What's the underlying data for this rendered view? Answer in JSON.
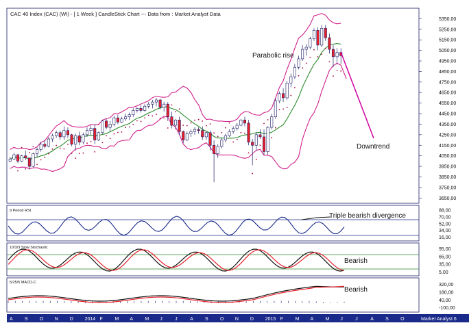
{
  "chart_data": {
    "type": "candlestick",
    "title": "CAC 40 Index (CAC) (WI) -  [ 1 Week ] CandleStick Chart --- Data from : Market Analyst Data",
    "watermark": "Market Analyst 6",
    "colors": {
      "up": "#ffffff",
      "down": "#e8202a",
      "wick": "#1a1a66",
      "bollinger": "#d0208a",
      "ma": "#2a8a2a",
      "psar": "#b00040",
      "projection": "#d000a0",
      "axis_band": "#1a2a8a"
    },
    "x_labels": [
      "A",
      "S",
      "O",
      "N",
      "D",
      "2014",
      "F",
      "M",
      "A",
      "M",
      "J",
      "J",
      "A",
      "S",
      "O",
      "N",
      "D",
      "2015",
      "F",
      "M",
      "A",
      "M",
      "J",
      "J",
      "A",
      "S",
      "O"
    ],
    "price_panel": {
      "ylim": [
        3600,
        5450
      ],
      "ticks": [
        "5350,00",
        "5250,00",
        "5150,00",
        "5050,00",
        "4950,00",
        "4850,00",
        "4750,00",
        "4650,00",
        "4550,00",
        "4450,00",
        "4350,00",
        "4250,00",
        "4150,00",
        "4050,00",
        "3950,00",
        "3850,00",
        "3750,00",
        "3650,00"
      ],
      "annotations": [
        "Parabolic rise",
        "Downtrend"
      ],
      "candles": [
        [
          4000,
          4040,
          3990,
          4020
        ],
        [
          4020,
          4080,
          4010,
          4060
        ],
        [
          4060,
          4070,
          3980,
          4000
        ],
        [
          4000,
          4060,
          3990,
          4050
        ],
        [
          4050,
          4100,
          4010,
          4030
        ],
        [
          4030,
          4030,
          3920,
          3950
        ],
        [
          3950,
          4080,
          3940,
          4070
        ],
        [
          4070,
          4130,
          4040,
          4110
        ],
        [
          4110,
          4180,
          4090,
          4160
        ],
        [
          4160,
          4200,
          4120,
          4140
        ],
        [
          4140,
          4230,
          4130,
          4210
        ],
        [
          4210,
          4260,
          4180,
          4240
        ],
        [
          4240,
          4290,
          4220,
          4270
        ],
        [
          4270,
          4290,
          4200,
          4230
        ],
        [
          4230,
          4330,
          4200,
          4290
        ],
        [
          4290,
          4320,
          4220,
          4250
        ],
        [
          4250,
          4260,
          4140,
          4160
        ],
        [
          4160,
          4260,
          4100,
          4240
        ],
        [
          4240,
          4280,
          4150,
          4180
        ],
        [
          4180,
          4270,
          4160,
          4250
        ],
        [
          4250,
          4320,
          4230,
          4290
        ],
        [
          4290,
          4340,
          4250,
          4310
        ],
        [
          4310,
          4350,
          4160,
          4200
        ],
        [
          4200,
          4280,
          4190,
          4270
        ],
        [
          4270,
          4390,
          4260,
          4380
        ],
        [
          4380,
          4400,
          4300,
          4320
        ],
        [
          4320,
          4380,
          4280,
          4350
        ],
        [
          4350,
          4430,
          4330,
          4410
        ],
        [
          4410,
          4440,
          4350,
          4370
        ],
        [
          4370,
          4420,
          4360,
          4400
        ],
        [
          4400,
          4450,
          4380,
          4420
        ],
        [
          4420,
          4460,
          4390,
          4440
        ],
        [
          4440,
          4500,
          4420,
          4480
        ],
        [
          4480,
          4510,
          4460,
          4500
        ],
        [
          4500,
          4530,
          4460,
          4480
        ],
        [
          4480,
          4540,
          4470,
          4520
        ],
        [
          4520,
          4560,
          4500,
          4540
        ],
        [
          4540,
          4580,
          4500,
          4560
        ],
        [
          4560,
          4600,
          4520,
          4580
        ],
        [
          4580,
          4590,
          4490,
          4510
        ],
        [
          4510,
          4560,
          4470,
          4540
        ],
        [
          4540,
          4560,
          4380,
          4420
        ],
        [
          4420,
          4470,
          4310,
          4340
        ],
        [
          4340,
          4400,
          4300,
          4390
        ],
        [
          4390,
          4420,
          4250,
          4280
        ],
        [
          4280,
          4290,
          4170,
          4200
        ],
        [
          4200,
          4280,
          4190,
          4260
        ],
        [
          4260,
          4300,
          4230,
          4280
        ],
        [
          4280,
          4320,
          4250,
          4300
        ],
        [
          4300,
          4320,
          4260,
          4290
        ],
        [
          4290,
          4330,
          4200,
          4230
        ],
        [
          4230,
          4280,
          4200,
          4270
        ],
        [
          4270,
          4290,
          4100,
          4150
        ],
        [
          4150,
          4200,
          3800,
          4070
        ],
        [
          4070,
          4160,
          4030,
          4140
        ],
        [
          4140,
          4220,
          4120,
          4200
        ],
        [
          4200,
          4260,
          4180,
          4240
        ],
        [
          4240,
          4300,
          4230,
          4280
        ],
        [
          4280,
          4330,
          4260,
          4310
        ],
        [
          4310,
          4360,
          4290,
          4340
        ],
        [
          4340,
          4400,
          4330,
          4390
        ],
        [
          4390,
          4420,
          4330,
          4360
        ],
        [
          4360,
          4390,
          4150,
          4180
        ],
        [
          4180,
          4210,
          3960,
          4150
        ],
        [
          4150,
          4270,
          4100,
          4250
        ],
        [
          4250,
          4300,
          4210,
          4230
        ],
        [
          4230,
          4300,
          4060,
          4090
        ],
        [
          4090,
          4330,
          4060,
          4320
        ],
        [
          4320,
          4450,
          4300,
          4420
        ],
        [
          4420,
          4600,
          4400,
          4570
        ],
        [
          4570,
          4660,
          4550,
          4640
        ],
        [
          4640,
          4690,
          4560,
          4600
        ],
        [
          4600,
          4760,
          4580,
          4740
        ],
        [
          4740,
          4830,
          4700,
          4800
        ],
        [
          4800,
          4920,
          4780,
          4890
        ],
        [
          4890,
          5000,
          4870,
          4970
        ],
        [
          4970,
          5100,
          4950,
          5060
        ],
        [
          5060,
          5110,
          5000,
          5080
        ],
        [
          5080,
          5180,
          5060,
          5160
        ],
        [
          5160,
          5260,
          5140,
          5240
        ],
        [
          5240,
          5270,
          5050,
          5100
        ],
        [
          5100,
          5290,
          5080,
          5260
        ],
        [
          5260,
          5290,
          5140,
          5170
        ],
        [
          5170,
          5210,
          5020,
          5060
        ],
        [
          5060,
          5100,
          4890,
          4990
        ],
        [
          4990,
          5070,
          4920,
          5030
        ],
        [
          5030,
          5070,
          4920,
          5000
        ]
      ]
    },
    "rsi_panel": {
      "label": "9 Period RSI",
      "ticks": [
        "88,00",
        "70,00",
        "52,00",
        "34,00",
        "16,00"
      ],
      "annotation": "Triple bearish divergence"
    },
    "stoch_panel": {
      "label": "10/3/3 Slow Stochastic",
      "ticks": [
        "95,00",
        "65,00",
        "35,00",
        "5,00"
      ],
      "annotation": "Bearish"
    },
    "macd_panel": {
      "label": "5/25/5 MACD-C",
      "ticks": [
        "320,00",
        "180,00",
        "40,00",
        "-100,00"
      ],
      "annotation": "Bearish"
    }
  }
}
